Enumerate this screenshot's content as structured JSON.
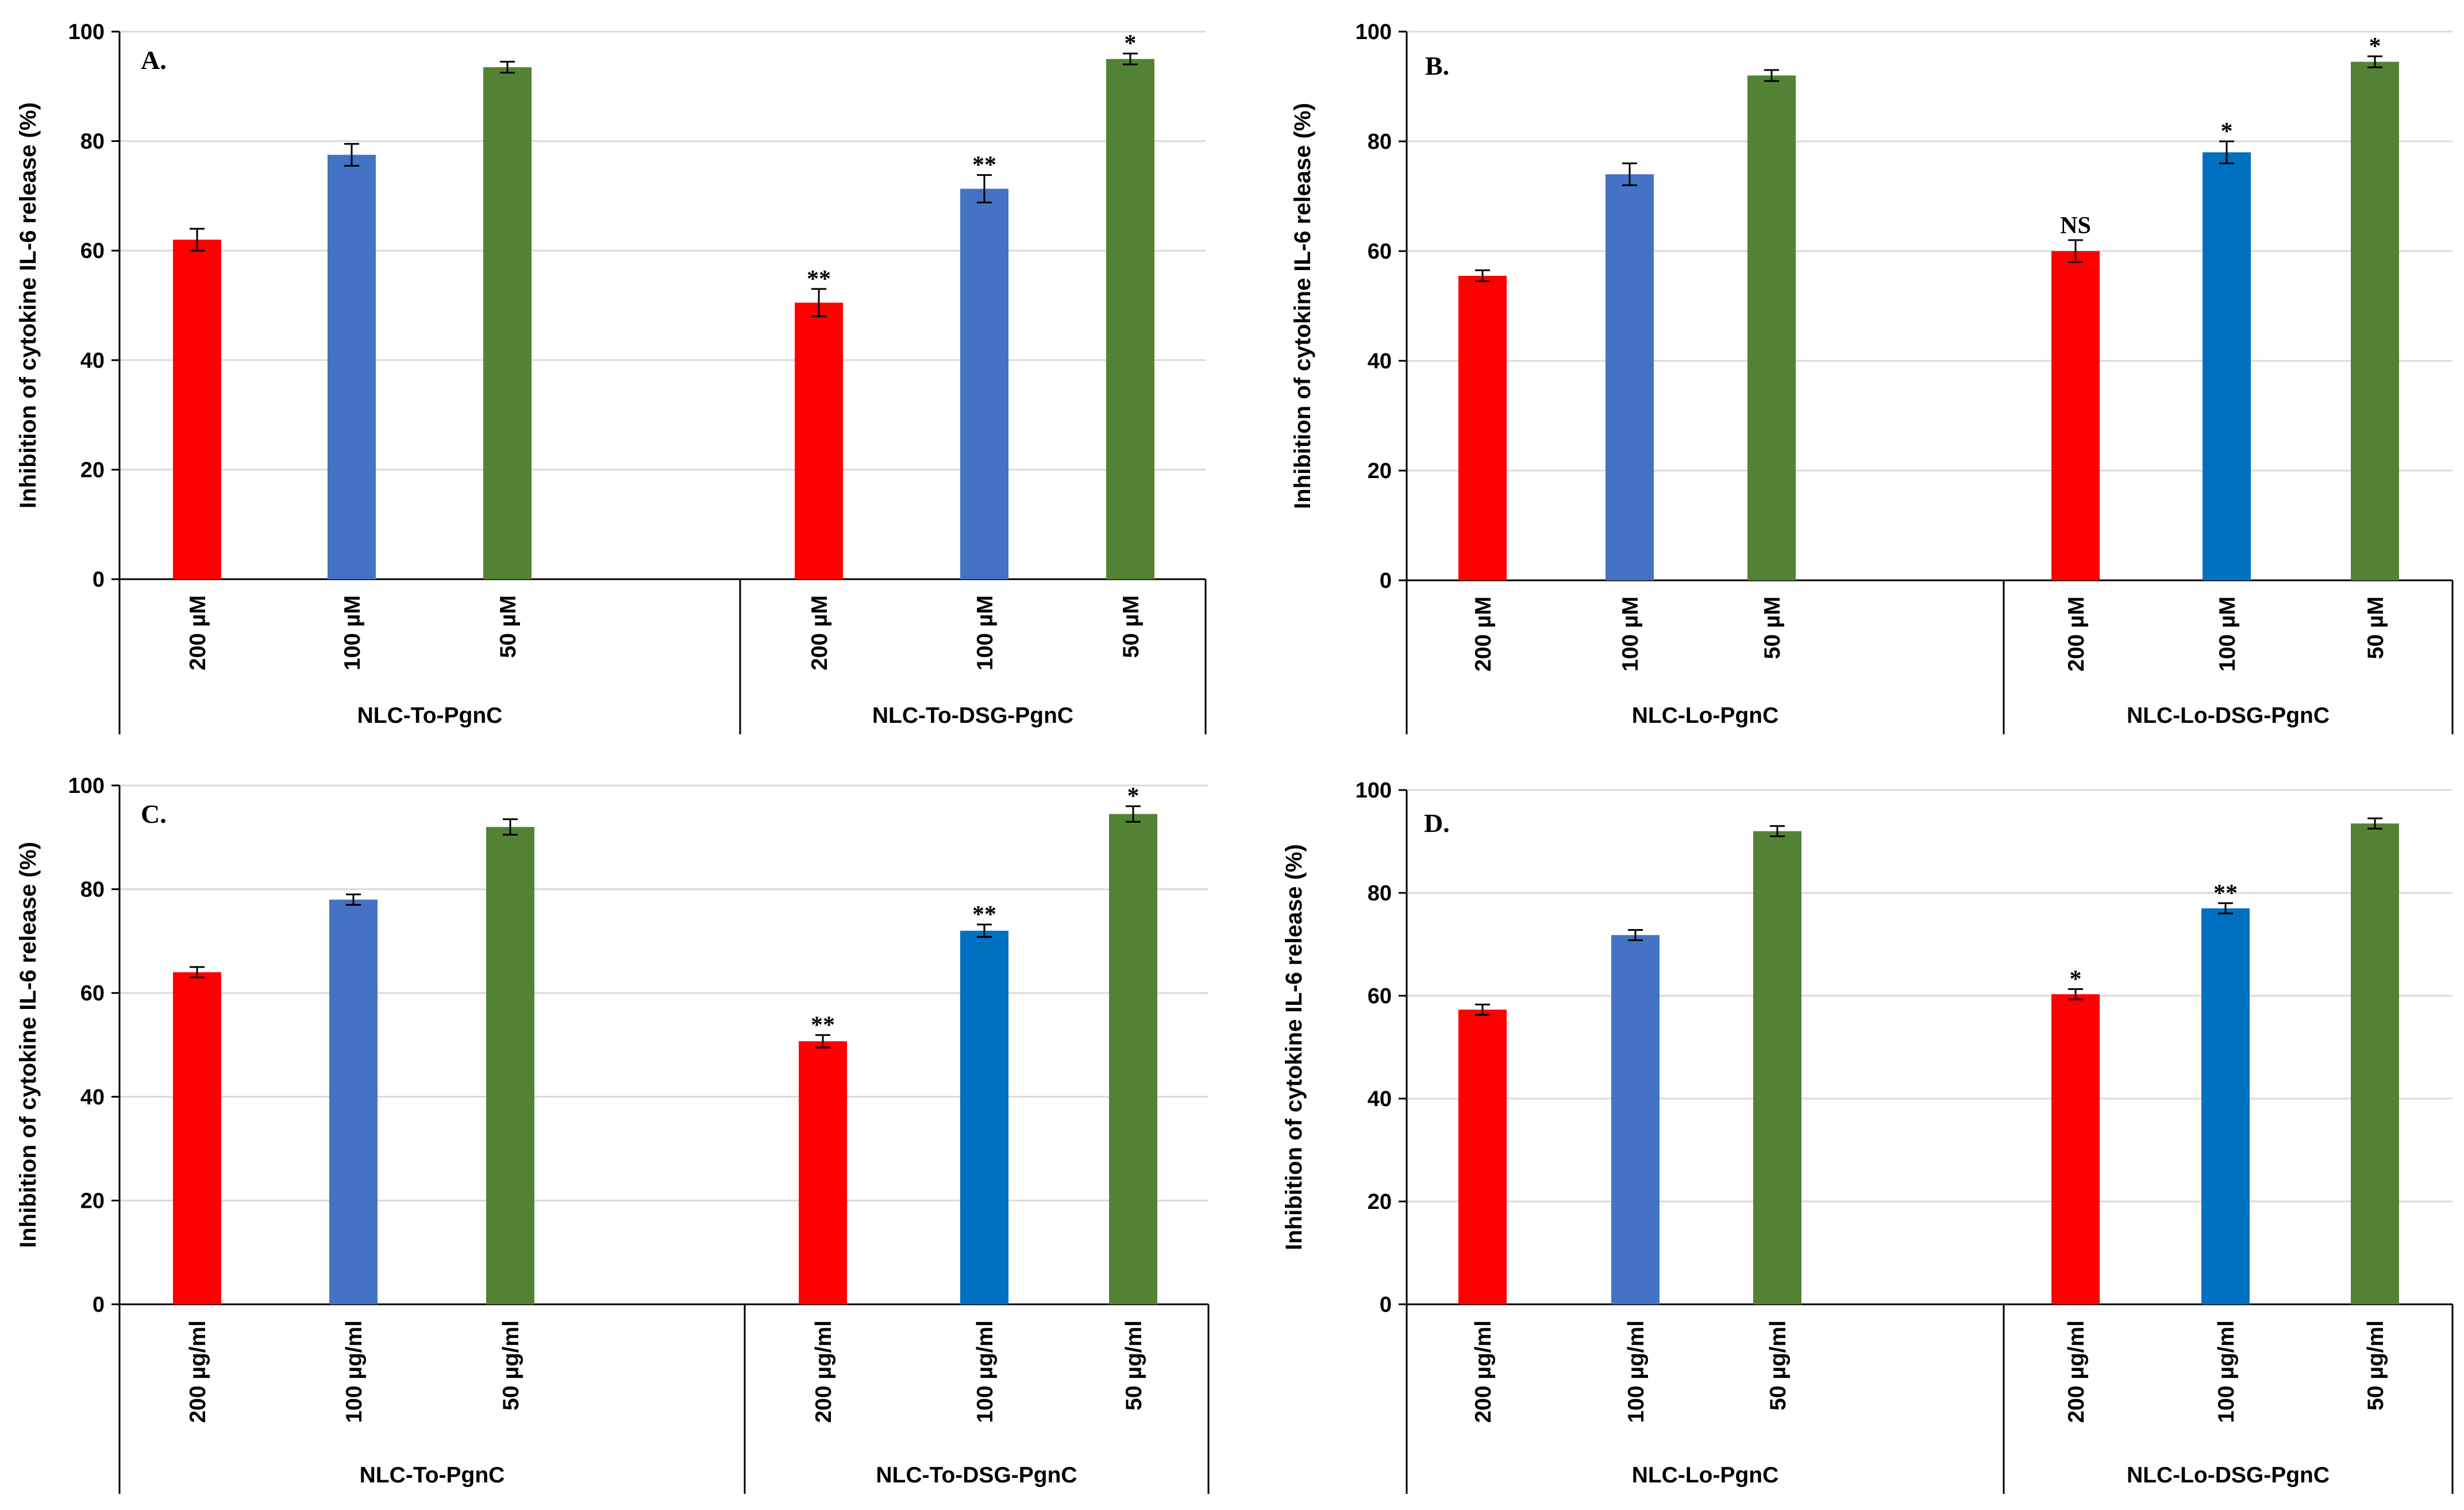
{
  "chart_data": [
    {
      "type": "bar",
      "title": "A.",
      "ylabel": "Inhibition of cytokine IL-6 release (%)",
      "ylim": [
        0,
        100
      ],
      "yticks": [
        0,
        20,
        40,
        60,
        80,
        100
      ],
      "grid": true,
      "groups": [
        {
          "name": "NLC-To-PgnC",
          "bars": [
            {
              "label": "200 µM",
              "value": 62,
              "error": 2,
              "color": "#ff0000",
              "sig": ""
            },
            {
              "label": "100 µM",
              "value": 77.5,
              "error": 2,
              "color": "#4472c4",
              "sig": ""
            },
            {
              "label": "50 µM",
              "value": 93.5,
              "error": 1,
              "color": "#548235",
              "sig": ""
            }
          ]
        },
        {
          "name": "NLC-To-DSG-PgnC",
          "bars": [
            {
              "label": "200 µM",
              "value": 50.5,
              "error": 2.5,
              "color": "#ff0000",
              "sig": "**"
            },
            {
              "label": "100 µM",
              "value": 71.3,
              "error": 2.5,
              "color": "#4472c4",
              "sig": "**"
            },
            {
              "label": "50 µM",
              "value": 95,
              "error": 1,
              "color": "#548235",
              "sig": "*"
            }
          ]
        }
      ]
    },
    {
      "type": "bar",
      "title": "B.",
      "ylabel": "Inhibition of cytokine IL-6 release (%)",
      "ylim": [
        0,
        100
      ],
      "yticks": [
        0,
        20,
        40,
        60,
        80,
        100
      ],
      "grid": true,
      "groups": [
        {
          "name": "NLC-Lo-PgnC",
          "bars": [
            {
              "label": "200 µM",
              "value": 55.5,
              "error": 1,
              "color": "#ff0000",
              "sig": ""
            },
            {
              "label": "100 µM",
              "value": 74,
              "error": 2,
              "color": "#4472c4",
              "sig": ""
            },
            {
              "label": "50 µM",
              "value": 92,
              "error": 1,
              "color": "#548235",
              "sig": ""
            }
          ]
        },
        {
          "name": "NLC-Lo-DSG-PgnC",
          "bars": [
            {
              "label": "200 µM",
              "value": 60,
              "error": 2,
              "color": "#ff0000",
              "sig": "NS"
            },
            {
              "label": "100 µM",
              "value": 78,
              "error": 2,
              "color": "#0070c0",
              "sig": "*"
            },
            {
              "label": "50 µM",
              "value": 94.5,
              "error": 1,
              "color": "#548235",
              "sig": "*"
            }
          ]
        }
      ]
    },
    {
      "type": "bar",
      "title": "C.",
      "ylabel": "Inhibition of cytokine IL-6 release (%)",
      "ylim": [
        0,
        100
      ],
      "yticks": [
        0,
        20,
        40,
        60,
        80,
        100
      ],
      "grid": true,
      "groups": [
        {
          "name": "NLC-To-PgnC",
          "bars": [
            {
              "label": "200 µg/ml",
              "value": 64,
              "error": 1,
              "color": "#ff0000",
              "sig": ""
            },
            {
              "label": "100 µg/ml",
              "value": 78,
              "error": 1,
              "color": "#4472c4",
              "sig": ""
            },
            {
              "label": "50 µg/ml",
              "value": 92,
              "error": 1.5,
              "color": "#548235",
              "sig": ""
            }
          ]
        },
        {
          "name": "NLC-To-DSG-PgnC",
          "bars": [
            {
              "label": "200 µg/ml",
              "value": 50.7,
              "error": 1.2,
              "color": "#ff0000",
              "sig": "**"
            },
            {
              "label": "100 µg/ml",
              "value": 72,
              "error": 1.2,
              "color": "#0070c0",
              "sig": "**"
            },
            {
              "label": "50 µg/ml",
              "value": 94.5,
              "error": 1.5,
              "color": "#548235",
              "sig": "*"
            }
          ]
        }
      ]
    },
    {
      "type": "bar",
      "title": "D.",
      "ylabel": "Inhibition of cytokine IL-6 release (%)",
      "ylim": [
        0,
        100
      ],
      "yticks": [
        0,
        20,
        40,
        60,
        80,
        100
      ],
      "grid": true,
      "groups": [
        {
          "name": "NLC-Lo-PgnC",
          "bars": [
            {
              "label": "200 µg/ml",
              "value": 57.3,
              "error": 1,
              "color": "#ff0000",
              "sig": ""
            },
            {
              "label": "100 µg/ml",
              "value": 71.8,
              "error": 1,
              "color": "#4472c4",
              "sig": ""
            },
            {
              "label": "50 µg/ml",
              "value": 92,
              "error": 1,
              "color": "#548235",
              "sig": ""
            }
          ]
        },
        {
          "name": "NLC-Lo-DSG-PgnC",
          "bars": [
            {
              "label": "200 µg/ml",
              "value": 60.3,
              "error": 1,
              "color": "#ff0000",
              "sig": "*"
            },
            {
              "label": "100 µg/ml",
              "value": 77,
              "error": 1,
              "color": "#0070c0",
              "sig": "**"
            },
            {
              "label": "50 µg/ml",
              "value": 93.5,
              "error": 1,
              "color": "#548235",
              "sig": ""
            }
          ]
        }
      ]
    }
  ]
}
